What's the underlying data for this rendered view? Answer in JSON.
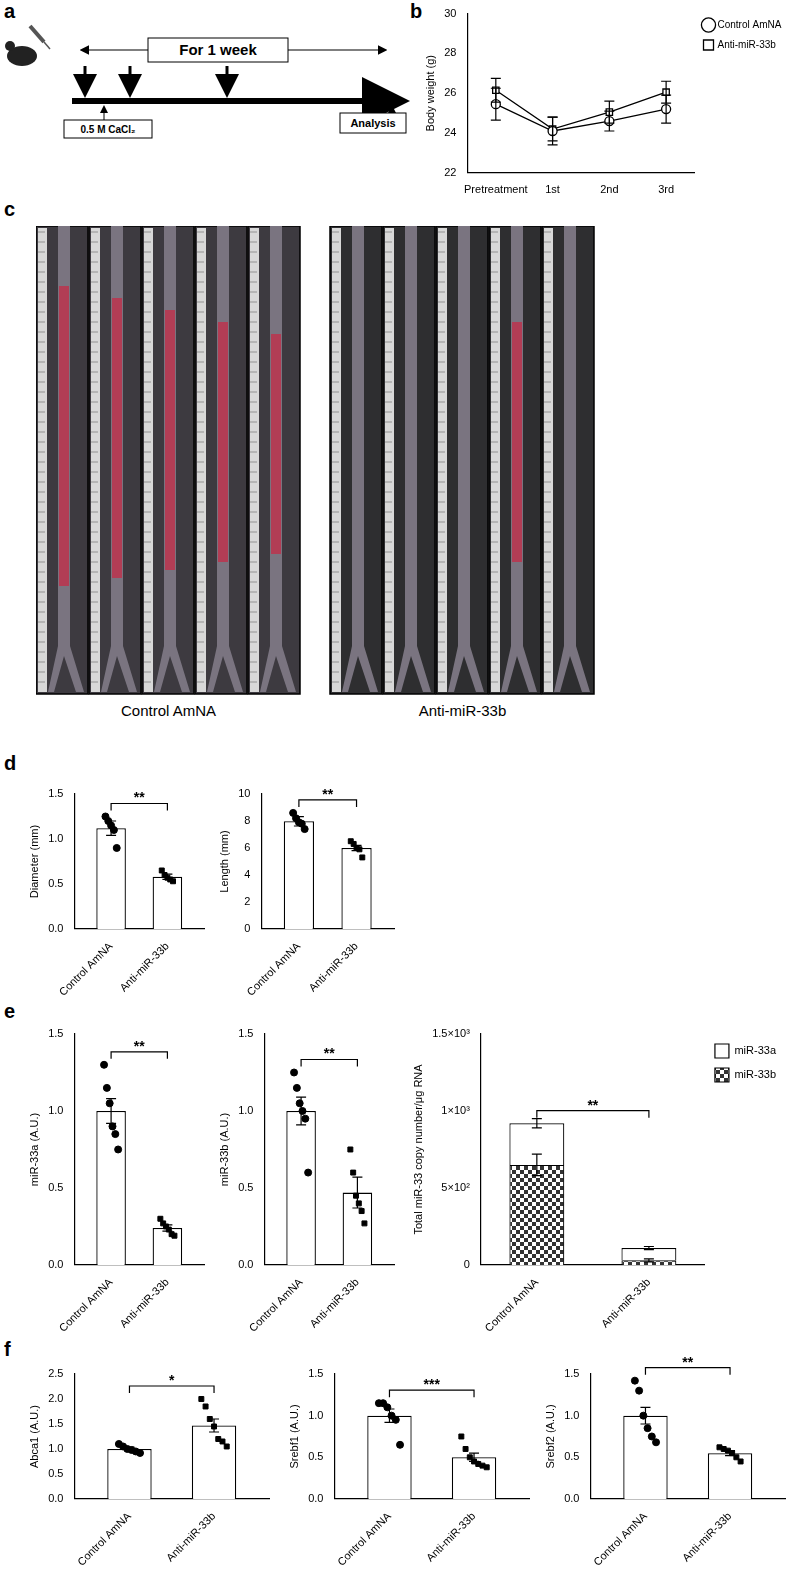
{
  "panel_labels": [
    "a",
    "b",
    "c",
    "d",
    "e",
    "f"
  ],
  "diagram": {
    "duration": "For 1 week",
    "treatment": "0.5 M CaCl₂",
    "endpoint": "Analysis"
  },
  "photos": {
    "groups": [
      "Control AmNA",
      "Anti-miR-33b"
    ]
  },
  "chart_data": [
    {
      "type": "line",
      "y_label": "Body weight (g)",
      "categories": [
        "Pretreatment",
        "1st",
        "2nd",
        "3rd"
      ],
      "series": [
        {
          "name": "Control AmNA",
          "color": "#000000",
          "marker": "circle",
          "values": [
            25.45,
            24.1,
            24.6,
            25.2
          ],
          "errors": [
            0.8,
            0.7,
            0.5,
            0.7
          ]
        },
        {
          "name": "Anti-miR-33b",
          "color": "#000000",
          "marker": "square",
          "values": [
            26.15,
            24.2,
            25.05,
            26.05
          ],
          "errors": [
            0.6,
            0.6,
            0.55,
            0.55
          ]
        }
      ],
      "ylim": [
        22,
        30
      ],
      "yticks": [
        22,
        24,
        26,
        28,
        30
      ],
      "grid": false,
      "legend": "right"
    },
    {
      "type": "bar",
      "y_label": "Diameter (mm)",
      "categories": [
        "Control AmNA",
        "Anti-miR-33b"
      ],
      "values": [
        1.12,
        0.58
      ],
      "errors": [
        0.08,
        0.03
      ],
      "points": [
        [
          1.25,
          1.2,
          1.15,
          1.1,
          0.9
        ],
        [
          0.65,
          0.6,
          0.57,
          0.55,
          0.53
        ]
      ],
      "color": "#ffffff",
      "ylim": [
        0,
        1.5
      ],
      "yticks": [
        {
          "value": 0,
          "label": "0.0"
        },
        {
          "value": 0.5,
          "label": "0.5"
        },
        {
          "value": 1,
          "label": "1.0"
        },
        {
          "value": 1.5,
          "label": "1.5"
        }
      ],
      "grid": false,
      "annotation": "**"
    },
    {
      "type": "bar",
      "y_label": "Length (mm)",
      "categories": [
        "Control AmNA",
        "Anti-miR-33b"
      ],
      "values": [
        7.98,
        6.0
      ],
      "errors": [
        0.35,
        0.2
      ],
      "points": [
        [
          8.6,
          8.2,
          7.9,
          7.8,
          7.4
        ],
        [
          6.5,
          6.3,
          6.0,
          5.9,
          5.3
        ]
      ],
      "color": "#ffffff",
      "ylim": [
        0,
        10
      ],
      "yticks": [
        0,
        2,
        4,
        6,
        8,
        10
      ],
      "grid": false,
      "annotation": "**"
    },
    {
      "type": "bar",
      "y_label": "miR-33a (A.U.)",
      "categories": [
        "Control AmNA",
        "Anti-miR-33b"
      ],
      "values": [
        1.0,
        0.24
      ],
      "errors": [
        0.08,
        0.02
      ],
      "points": [
        [
          1.3,
          1.15,
          1.05,
          0.9,
          0.85,
          0.75
        ],
        [
          0.3,
          0.27,
          0.25,
          0.23,
          0.2,
          0.19
        ]
      ],
      "color": "#ffffff",
      "ylim": [
        0,
        1.5
      ],
      "yticks": [
        {
          "value": 0,
          "label": "0.0"
        },
        {
          "value": 0.5,
          "label": "0.5"
        },
        {
          "value": 1,
          "label": "1.0"
        },
        {
          "value": 1.5,
          "label": "1.5"
        }
      ],
      "grid": false,
      "annotation": "**"
    },
    {
      "type": "bar",
      "y_label": "miR-33b (A.U.)",
      "categories": [
        "Control AmNA",
        "Anti-miR-33b"
      ],
      "values": [
        1.0,
        0.47
      ],
      "errors": [
        0.09,
        0.1
      ],
      "points": [
        [
          1.25,
          1.15,
          1.05,
          1.0,
          0.95,
          0.6
        ],
        [
          0.75,
          0.6,
          0.45,
          0.4,
          0.35,
          0.27
        ]
      ],
      "color": "#ffffff",
      "ylim": [
        0,
        1.5
      ],
      "yticks": [
        {
          "value": 0,
          "label": "0.0"
        },
        {
          "value": 0.5,
          "label": "0.5"
        },
        {
          "value": 1,
          "label": "1.0"
        },
        {
          "value": 1.5,
          "label": "1.5"
        }
      ],
      "grid": false,
      "annotation": "**"
    },
    {
      "type": "bar",
      "stacked": true,
      "y_label": "Total miR-33 copy number/μg RNA",
      "categories": [
        "Control AmNA",
        "Anti-miR-33b"
      ],
      "series": [
        {
          "name": "miR-33b",
          "color": "#333333",
          "values": [
            650,
            30
          ],
          "errors": [
            70,
            10
          ]
        },
        {
          "name": "miR-33a",
          "color": "#ffffff",
          "values": [
            270,
            80
          ],
          "errors": [
            30,
            10
          ]
        }
      ],
      "ylim": [
        0,
        1500
      ],
      "yticks": [
        {
          "value": 0,
          "label": "0"
        },
        {
          "value": 500,
          "label": "5×10²"
        },
        {
          "value": 1000,
          "label": "1×10³"
        },
        {
          "value": 1500,
          "label": "1.5×10³"
        }
      ],
      "grid": false,
      "legend": "right",
      "annotation": "**"
    },
    {
      "type": "bar",
      "y_label": "Abca1 (A.U.)",
      "categories": [
        "Control AmNA",
        "Anti-miR-33b"
      ],
      "values": [
        1.0,
        1.47
      ],
      "errors": [
        0.04,
        0.13
      ],
      "points": [
        [
          1.1,
          1.05,
          1.0,
          0.98,
          0.95,
          0.92
        ],
        [
          2.0,
          1.85,
          1.6,
          1.45,
          1.2,
          1.15,
          1.05
        ]
      ],
      "color": "#ffffff",
      "ylim": [
        0,
        2.5
      ],
      "yticks": [
        {
          "value": 0,
          "label": "0.0"
        },
        {
          "value": 0.5,
          "label": "0.5"
        },
        {
          "value": 1,
          "label": "1.0"
        },
        {
          "value": 1.5,
          "label": "1.5"
        },
        {
          "value": 2,
          "label": "2.0"
        },
        {
          "value": 2.5,
          "label": "2.5"
        }
      ],
      "grid": false,
      "annotation": "*"
    },
    {
      "type": "bar",
      "y_label": "Srebf1 (A.U.)",
      "categories": [
        "Control AmNA",
        "Anti-miR-33b"
      ],
      "values": [
        1.0,
        0.5
      ],
      "errors": [
        0.08,
        0.05
      ],
      "points": [
        [
          1.15,
          1.15,
          1.1,
          1.0,
          0.95,
          0.65
        ],
        [
          0.75,
          0.6,
          0.5,
          0.45,
          0.42,
          0.4,
          0.38
        ]
      ],
      "color": "#ffffff",
      "ylim": [
        0,
        1.5
      ],
      "yticks": [
        {
          "value": 0,
          "label": "0.0"
        },
        {
          "value": 0.5,
          "label": "0.5"
        },
        {
          "value": 1,
          "label": "1.0"
        },
        {
          "value": 1.5,
          "label": "1.5"
        }
      ],
      "grid": false,
      "annotation": "***"
    },
    {
      "type": "bar",
      "y_label": "Srebf2 (A.U.)",
      "categories": [
        "Control AmNA",
        "Anti-miR-33b"
      ],
      "values": [
        1.0,
        0.55
      ],
      "errors": [
        0.1,
        0.03
      ],
      "points": [
        [
          1.42,
          1.3,
          1.0,
          0.85,
          0.75,
          0.68
        ],
        [
          0.62,
          0.6,
          0.58,
          0.55,
          0.5,
          0.45
        ]
      ],
      "color": "#ffffff",
      "ylim": [
        0,
        1.5
      ],
      "yticks": [
        {
          "value": 0,
          "label": "0.0"
        },
        {
          "value": 0.5,
          "label": "0.5"
        },
        {
          "value": 1,
          "label": "1.0"
        },
        {
          "value": 1.5,
          "label": "1.5"
        }
      ],
      "grid": false,
      "annotation": "**"
    }
  ]
}
